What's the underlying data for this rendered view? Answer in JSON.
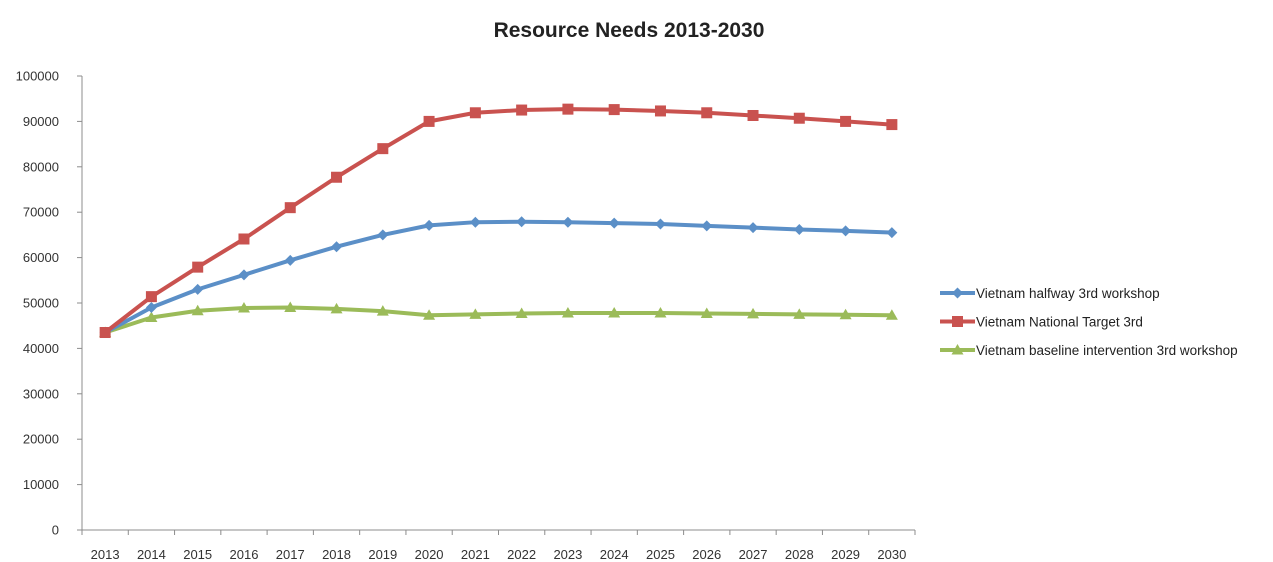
{
  "chart_data": {
    "type": "line",
    "title": "Resource Needs 2013-2030",
    "xlabel": "",
    "ylabel": "",
    "x": [
      "2013",
      "2014",
      "2015",
      "2016",
      "2017",
      "2018",
      "2019",
      "2020",
      "2021",
      "2022",
      "2023",
      "2024",
      "2025",
      "2026",
      "2027",
      "2028",
      "2029",
      "2030"
    ],
    "ylim": [
      0,
      100000
    ],
    "yticks": [
      0,
      10000,
      20000,
      30000,
      40000,
      50000,
      60000,
      70000,
      80000,
      90000,
      100000
    ],
    "grid": false,
    "legend": "right",
    "series": [
      {
        "name": "Vietnam halfway 3rd workshop",
        "color": "#5b8fc7",
        "marker": "diamond",
        "values": [
          43500,
          49000,
          53000,
          56200,
          59400,
          62400,
          65000,
          67100,
          67800,
          67900,
          67800,
          67600,
          67400,
          67000,
          66600,
          66200,
          65900,
          65500
        ]
      },
      {
        "name": "Vietnam National Target 3rd",
        "color": "#c9524f",
        "marker": "square",
        "values": [
          43500,
          51400,
          57900,
          64100,
          71000,
          77700,
          84000,
          90000,
          91900,
          92500,
          92700,
          92600,
          92300,
          91900,
          91300,
          90700,
          90000,
          89300
        ]
      },
      {
        "name": "Vietnam baseline intervention 3rd workshop",
        "color": "#9bbb59",
        "marker": "triangle",
        "values": [
          43500,
          46800,
          48300,
          48900,
          49000,
          48700,
          48200,
          47300,
          47500,
          47700,
          47800,
          47800,
          47800,
          47700,
          47600,
          47500,
          47400,
          47300
        ]
      }
    ]
  }
}
